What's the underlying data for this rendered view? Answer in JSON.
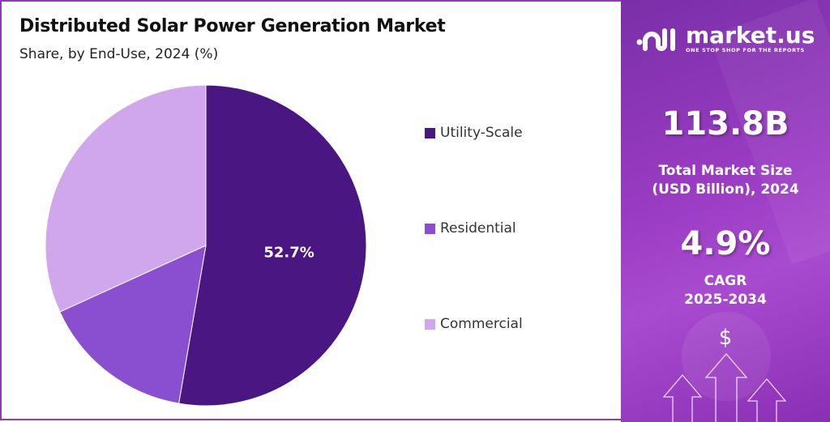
{
  "chart_data": {
    "type": "pie",
    "title": "Distributed Solar Power Generation Market",
    "subtitle": "Share, by End-Use, 2024 (%)",
    "categories": [
      "Utility-Scale",
      "Residential",
      "Commercial"
    ],
    "values": [
      52.7,
      15.5,
      31.8
    ],
    "colors": [
      "#4a1682",
      "#8a4fd0",
      "#d0a6ec"
    ],
    "data_labels": [
      "52.7%",
      "",
      ""
    ],
    "legend_position": "right"
  },
  "panel": {
    "logo_name": "market.us",
    "logo_tagline": "ONE STOP SHOP FOR THE REPORTS",
    "market_size": "113.8B",
    "market_size_label_1": "Total Market Size",
    "market_size_label_2": "(USD Billion), 2024",
    "cagr": "4.9%",
    "cagr_label_1": "CAGR",
    "cagr_label_2": "2025-2034",
    "dollar_symbol": "$",
    "accent": "#9b3cc4"
  }
}
